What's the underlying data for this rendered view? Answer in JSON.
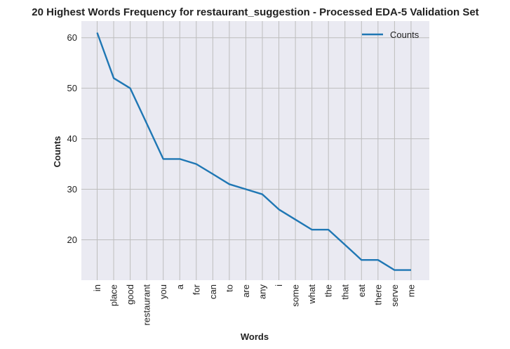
{
  "chart_data": {
    "type": "line",
    "title": "20 Highest Words Frequency for restaurant_suggestion - Processed EDA-5 Validation Set",
    "xlabel": "Words",
    "ylabel": "Counts",
    "categories": [
      "in",
      "place",
      "good",
      "restaurant",
      "you",
      "a",
      "for",
      "can",
      "to",
      "are",
      "any",
      "i",
      "some",
      "what",
      "the",
      "that",
      "eat",
      "there",
      "serve",
      "me"
    ],
    "series": [
      {
        "name": "Counts",
        "values": [
          61,
          52,
          50,
          43,
          36,
          36,
          35,
          33,
          31,
          30,
          29,
          26,
          24,
          22,
          22,
          19,
          16,
          16,
          14,
          14
        ]
      }
    ],
    "yticks": [
      20,
      30,
      40,
      50,
      60
    ],
    "ylim": [
      12,
      63.3
    ],
    "grid": true,
    "legend_position": "top-right",
    "colors": {
      "line": "#1f77b4",
      "plot_bg": "#eaeaf2",
      "grid": "#bdbdbd"
    }
  }
}
